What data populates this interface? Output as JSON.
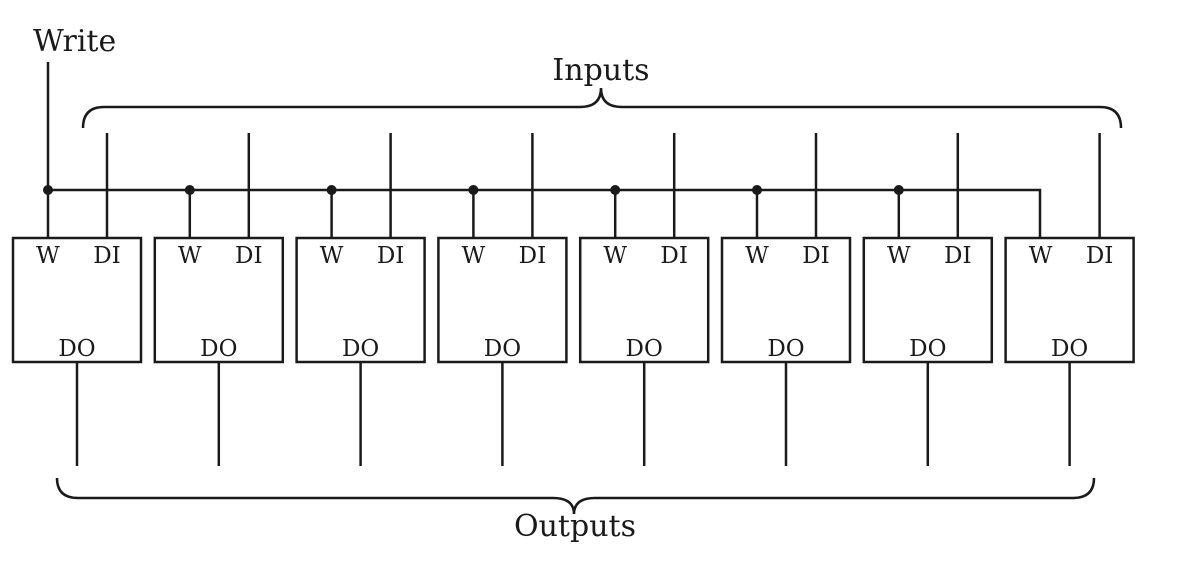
{
  "write_label": "Write",
  "inputs_label": "Inputs",
  "outputs_label": "Outputs",
  "cell": {
    "w_label": "W",
    "di_label": "DI",
    "do_label": "DO"
  },
  "cell_count": 8
}
